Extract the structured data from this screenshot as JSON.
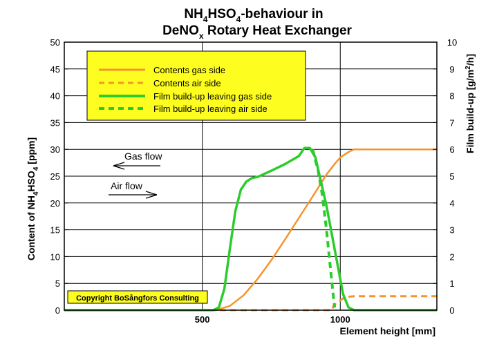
{
  "colors": {
    "background": "#ffffff",
    "plot_background": "#ffffff",
    "border": "#000000",
    "gas_contents": "#f7932b",
    "air_contents": "#f7932b",
    "gas_film": "#2ccc2c",
    "air_film": "#2ccc2c",
    "legend_bg": "#fdfd1f",
    "copyright_bg": "#fdfd1f"
  },
  "chart_data": {
    "type": "line",
    "title": {
      "line1": {
        "main": "NH",
        "sub1": "4",
        "mid": "HSO",
        "sub2": "4",
        "rest": "-behaviour in"
      },
      "line2": {
        "main": "DeNO",
        "sub": "x",
        "rest": " Rotary Heat Exchanger"
      }
    },
    "xlabel": "Element height [mm]",
    "ylabel_left": {
      "pre": "Content of NH",
      "sub1": "4",
      "mid": "HSO",
      "sub2": "4",
      "post": " [ppm]"
    },
    "ylabel_right": {
      "pre": "Film build-up [g/m",
      "sup": "2",
      "post": "/h]"
    },
    "xlim": [
      0,
      1350
    ],
    "ylim_left": [
      0,
      50
    ],
    "ylim_right": [
      0,
      10
    ],
    "x_ticks": [
      500,
      1000
    ],
    "y_ticks_left": [
      0,
      5,
      10,
      15,
      20,
      25,
      30,
      35,
      40,
      45,
      50
    ],
    "y_ticks_right": [
      0,
      1,
      2,
      3,
      4,
      5,
      6,
      7,
      8,
      9,
      10
    ],
    "grid": true,
    "legend_position": "top-left",
    "series": [
      {
        "name": "Contents gas side",
        "axis": "left",
        "style": "solid",
        "x": [
          0,
          550,
          600,
          650,
          700,
          750,
          800,
          850,
          900,
          950,
          980,
          1000,
          1030,
          1050,
          1100,
          1150,
          1200,
          1250,
          1300,
          1350
        ],
        "y": [
          0,
          0,
          0.8,
          2.8,
          5.8,
          9.3,
          13.2,
          17.2,
          21.2,
          25.3,
          27.3,
          28.5,
          29.5,
          30,
          30,
          30,
          30,
          30,
          30,
          30
        ]
      },
      {
        "name": "Contents air side",
        "axis": "left",
        "style": "dashed",
        "x": [
          0,
          550,
          950,
          970,
          975,
          990,
          1000,
          1010,
          1030,
          1050,
          1100,
          1150,
          1200,
          1250,
          1300,
          1350
        ],
        "y": [
          0,
          0,
          0,
          0,
          0.8,
          1.6,
          1.8,
          2.2,
          2.5,
          2.6,
          2.6,
          2.6,
          2.6,
          2.6,
          2.6,
          2.6
        ]
      },
      {
        "name": "Film build-up leaving gas side",
        "axis": "right",
        "style": "solid",
        "x": [
          0,
          540,
          560,
          580,
          600,
          620,
          640,
          660,
          680,
          700,
          750,
          800,
          850,
          870,
          890,
          910,
          930,
          950,
          970,
          990,
          1010,
          1030,
          1050,
          1100,
          1350
        ],
        "y": [
          0,
          0,
          0.1,
          0.8,
          2.3,
          3.7,
          4.5,
          4.8,
          4.93,
          4.97,
          5.2,
          5.45,
          5.75,
          6.05,
          6.05,
          5.7,
          4.8,
          3.9,
          2.8,
          1.7,
          0.6,
          0.1,
          0,
          0,
          0
        ]
      },
      {
        "name": "Film build-up leaving air side",
        "axis": "right",
        "style": "dashed",
        "x": [
          900,
          920,
          935,
          950,
          960,
          970,
          975,
          980
        ],
        "y": [
          6.0,
          5.2,
          4.3,
          3.0,
          2.0,
          1.0,
          0.5,
          0.1
        ]
      }
    ],
    "annotations": [
      {
        "text": "Gas flow",
        "direction": "left"
      },
      {
        "text": "Air flow",
        "direction": "right"
      }
    ],
    "copyright": "Copyright BoSångfors Consulting"
  }
}
